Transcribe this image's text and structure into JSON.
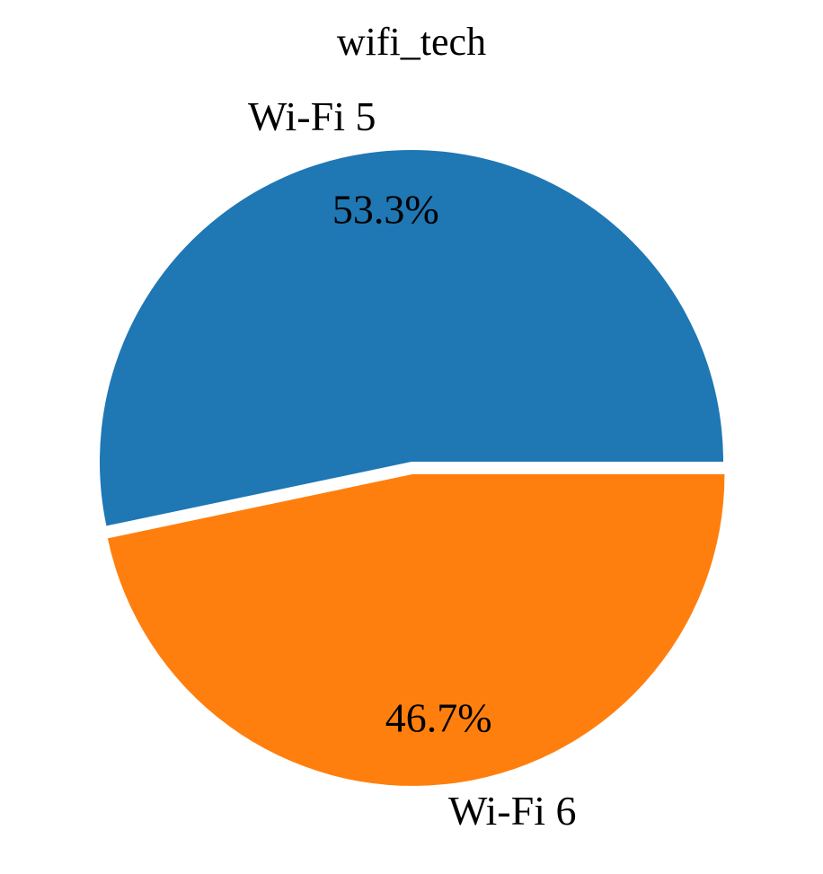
{
  "chart_data": {
    "type": "pie",
    "title": "wifi_tech",
    "slices": [
      {
        "label": "Wi-Fi 5",
        "value": 53.3,
        "pct_label": "53.3%",
        "color": "#1f77b4"
      },
      {
        "label": "Wi-Fi 6",
        "value": 46.7,
        "pct_label": "46.7%",
        "color": "#ff7f0e"
      }
    ],
    "start_angle_deg": 0,
    "direction": "counterclockwise",
    "exploded_slice": "Wi-Fi 6",
    "legend": "none"
  }
}
